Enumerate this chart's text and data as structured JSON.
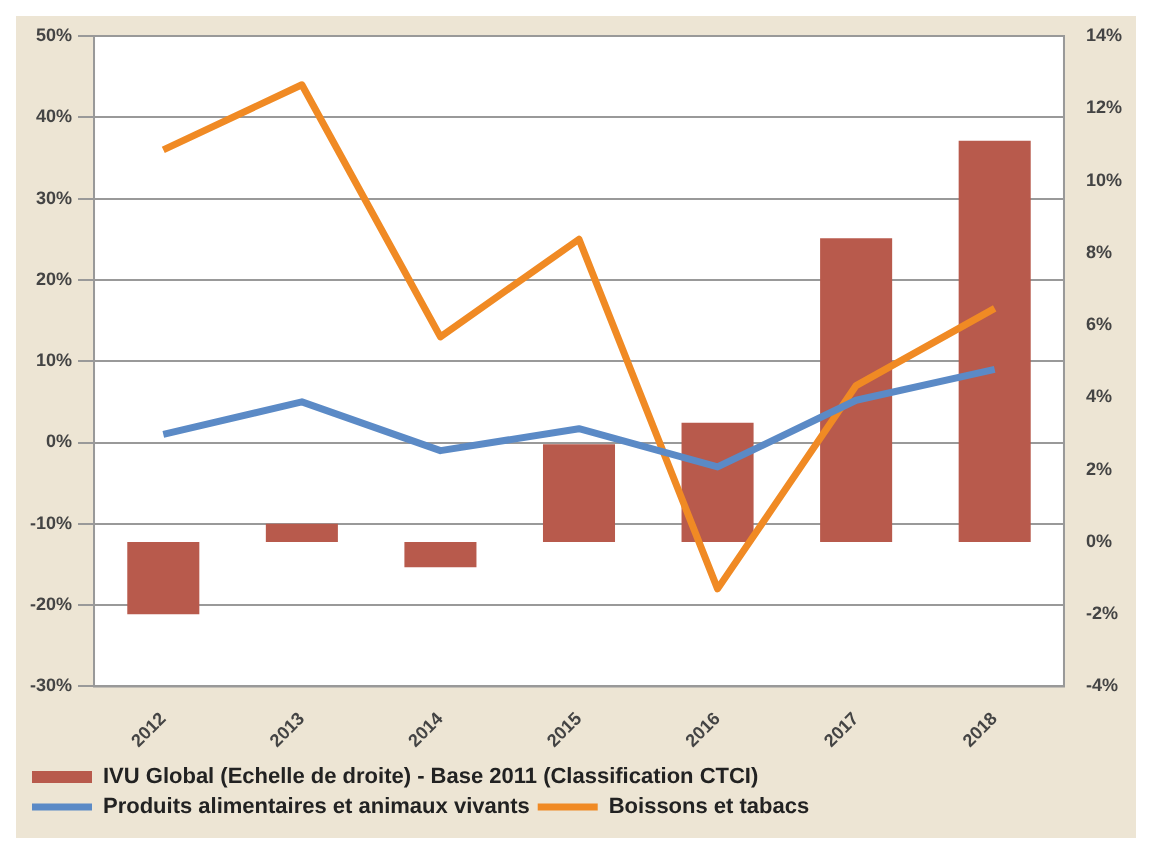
{
  "chart_data": {
    "type": "bar",
    "categories": [
      "2012",
      "2013",
      "2014",
      "2015",
      "2016",
      "2017",
      "2018"
    ],
    "series": [
      {
        "name": "IVU Global (Echelle de droite) - Base 2011 (Classification CTCI)",
        "axis": "y2",
        "color": "#b85a4c",
        "values": [
          -2.0,
          0.5,
          -0.7,
          2.7,
          3.3,
          8.4,
          11.1
        ]
      },
      {
        "name": "Produits alimentaires et animaux vivants",
        "type": "line",
        "color": "#5b8ac6",
        "values": [
          1,
          5,
          -1,
          1.7,
          -3,
          5.2,
          9
        ]
      },
      {
        "name": "Boissons et tabacs",
        "type": "line",
        "color": "#f08a24",
        "values": [
          36,
          44,
          13,
          25,
          -18,
          7,
          16.5
        ]
      }
    ],
    "ylim": [
      -30,
      50
    ],
    "yticks": [
      {
        "value": -30,
        "label": "-30%"
      },
      {
        "value": -20,
        "label": "-20%"
      },
      {
        "value": -10,
        "label": "-10%"
      },
      {
        "value": 0,
        "label": "0%"
      },
      {
        "value": 10,
        "label": "10%"
      },
      {
        "value": 20,
        "label": "20%"
      },
      {
        "value": 30,
        "label": "30%"
      },
      {
        "value": 40,
        "label": "40%"
      },
      {
        "value": 50,
        "label": "50%"
      }
    ],
    "y2lim": [
      -4,
      14
    ],
    "y2ticks": [
      {
        "value": -4,
        "label": "-4%"
      },
      {
        "value": -2,
        "label": "-2%"
      },
      {
        "value": 0,
        "label": "0%"
      },
      {
        "value": 2,
        "label": "2%"
      },
      {
        "value": 4,
        "label": "4%"
      },
      {
        "value": 6,
        "label": "6%"
      },
      {
        "value": 8,
        "label": "8%"
      },
      {
        "value": 10,
        "label": "10%"
      },
      {
        "value": 12,
        "label": "12%"
      },
      {
        "value": 14,
        "label": "14%"
      }
    ],
    "grid": "y",
    "legend": "bottom",
    "marker": "none",
    "line_style": "solid"
  }
}
